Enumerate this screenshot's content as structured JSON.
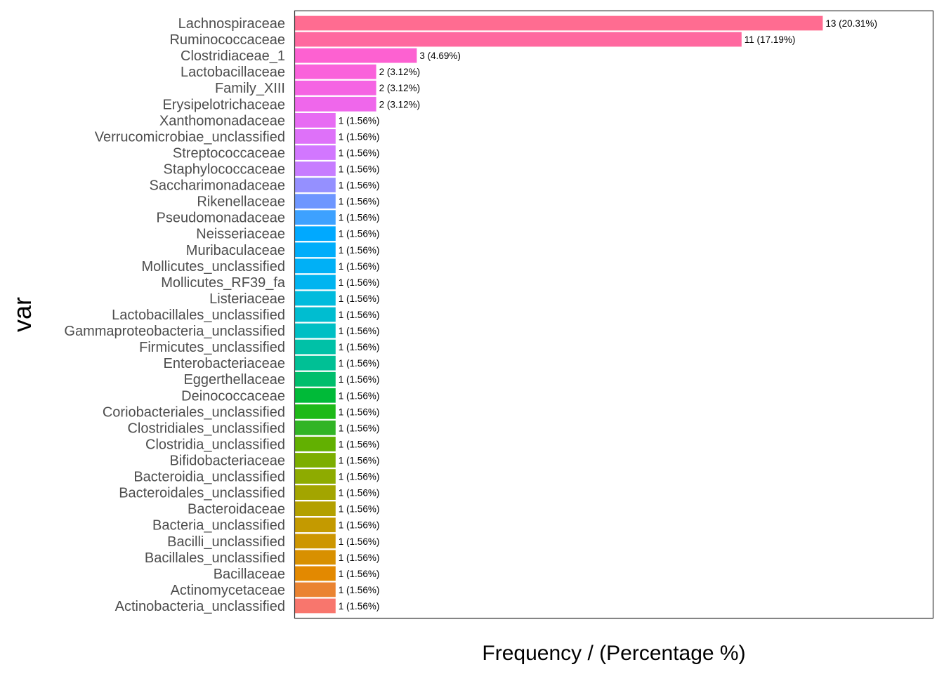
{
  "chart_data": {
    "type": "bar",
    "orientation": "horizontal",
    "xlabel": "Frequency / (Percentage %)",
    "ylabel": "var",
    "grid": false,
    "legend": "none",
    "xlim": [
      0,
      13.65
    ],
    "categories": [
      "Lachnospiraceae",
      "Ruminococcaceae",
      "Clostridiaceae_1",
      "Lactobacillaceae",
      "Family_XIII",
      "Erysipelotrichaceae",
      "Xanthomonadaceae",
      "Verrucomicrobiae_unclassified",
      "Streptococcaceae",
      "Staphylococcaceae",
      "Saccharimonadaceae",
      "Rikenellaceae",
      "Pseudomonadaceae",
      "Neisseriaceae",
      "Muribaculaceae",
      "Mollicutes_unclassified",
      "Mollicutes_RF39_fa",
      "Listeriaceae",
      "Lactobacillales_unclassified",
      "Gammaproteobacteria_unclassified",
      "Firmicutes_unclassified",
      "Enterobacteriaceae",
      "Eggerthellaceae",
      "Deinococcaceae",
      "Coriobacteriales_unclassified",
      "Clostridiales_unclassified",
      "Clostridia_unclassified",
      "Bifidobacteriaceae",
      "Bacteroidia_unclassified",
      "Bacteroidales_unclassified",
      "Bacteroidaceae",
      "Bacteria_unclassified",
      "Bacilli_unclassified",
      "Bacillales_unclassified",
      "Bacillaceae",
      "Actinomycetaceae",
      "Actinobacteria_unclassified"
    ],
    "values": [
      13,
      11,
      3,
      2,
      2,
      2,
      1,
      1,
      1,
      1,
      1,
      1,
      1,
      1,
      1,
      1,
      1,
      1,
      1,
      1,
      1,
      1,
      1,
      1,
      1,
      1,
      1,
      1,
      1,
      1,
      1,
      1,
      1,
      1,
      1,
      1,
      1
    ],
    "labels": [
      "13 (20.31%)",
      "11 (17.19%)",
      "3 (4.69%)",
      "2 (3.12%)",
      "2 (3.12%)",
      "2 (3.12%)",
      "1 (1.56%)",
      "1 (1.56%)",
      "1 (1.56%)",
      "1 (1.56%)",
      "1 (1.56%)",
      "1 (1.56%)",
      "1 (1.56%)",
      "1 (1.56%)",
      "1 (1.56%)",
      "1 (1.56%)",
      "1 (1.56%)",
      "1 (1.56%)",
      "1 (1.56%)",
      "1 (1.56%)",
      "1 (1.56%)",
      "1 (1.56%)",
      "1 (1.56%)",
      "1 (1.56%)",
      "1 (1.56%)",
      "1 (1.56%)",
      "1 (1.56%)",
      "1 (1.56%)",
      "1 (1.56%)",
      "1 (1.56%)",
      "1 (1.56%)",
      "1 (1.56%)",
      "1 (1.56%)",
      "1 (1.56%)",
      "1 (1.56%)",
      "1 (1.56%)",
      "1 (1.56%)"
    ],
    "colors": [
      "#FF6C91",
      "#FF689F",
      "#FD61D1",
      "#FA62DB",
      "#F564E3",
      "#EF67EB",
      "#E76BF3",
      "#DE71F9",
      "#D277FF",
      "#C77CFF",
      "#9590FF",
      "#6E96FF",
      "#3DA1FF",
      "#00A9FF",
      "#00ADFA",
      "#00B0F6",
      "#00B4F0",
      "#00BBDD",
      "#00BDD0",
      "#00BFC4",
      "#00C1A7",
      "#00C095",
      "#00BE6C",
      "#00BA38",
      "#1EB918",
      "#31B425",
      "#62B001",
      "#7CAE00",
      "#8EAB00",
      "#A3A500",
      "#B3A000",
      "#C49A00",
      "#CD9600",
      "#D89000",
      "#E38900",
      "#EA8331",
      "#F8766D"
    ]
  }
}
